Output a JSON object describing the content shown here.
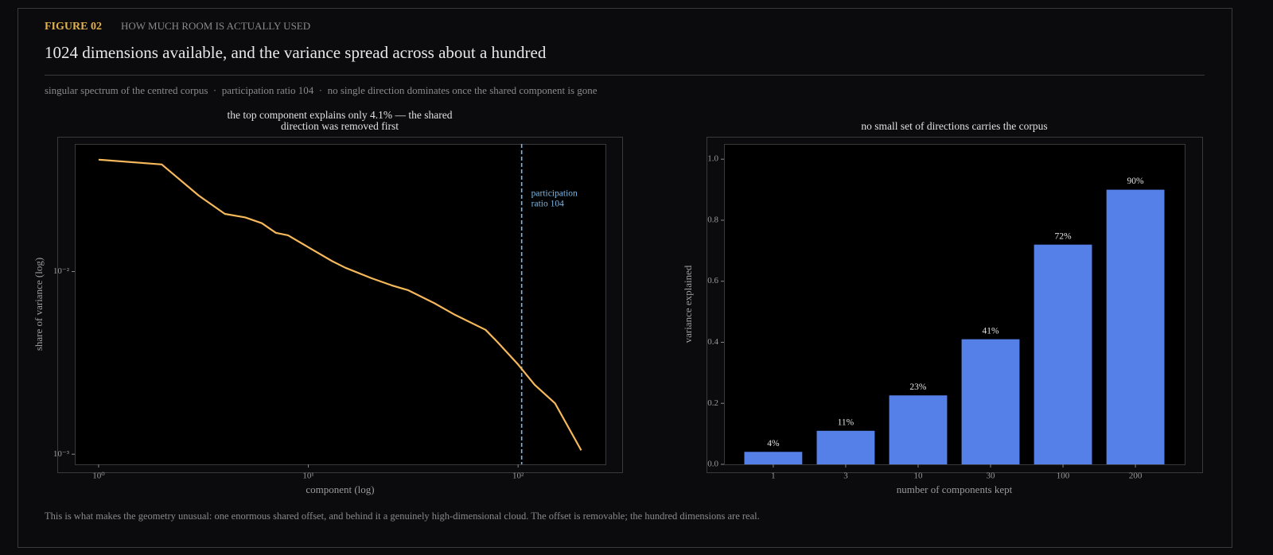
{
  "header": {
    "figure": "FIGURE 02",
    "kicker": "HOW MUCH ROOM IS ACTUALLY USED",
    "title": "1024 dimensions available, and the variance spread across about a hundred",
    "subtitle": "singular spectrum of the centred corpus  ·  participation ratio 104  ·  no single direction dominates once the shared component is gone",
    "footer": "This is what makes the geometry unusual: one enormous shared offset, and behind it a genuinely high-dimensional cloud. The offset is removable; the hundred dimensions are real."
  },
  "chart_data": [
    {
      "type": "line",
      "title": [
        "the top component explains only 4.1% — the shared",
        "direction was removed first"
      ],
      "xlabel": "component (log)",
      "ylabel": "share of variance (log)",
      "xscale": "log",
      "yscale": "log",
      "color": "#f5b85a",
      "x": [
        1,
        2,
        3,
        4,
        5,
        6,
        7,
        8,
        10,
        13,
        15,
        20,
        25,
        30,
        40,
        50,
        70,
        80,
        100,
        120,
        150,
        200
      ],
      "values": [
        0.041,
        0.0386,
        0.0261,
        0.0207,
        0.0198,
        0.0184,
        0.0163,
        0.0158,
        0.0136,
        0.0114,
        0.0105,
        0.0092,
        0.0084,
        0.0079,
        0.0067,
        0.0058,
        0.0048,
        0.0041,
        0.0031,
        0.0024,
        0.0019,
        0.00105
      ],
      "xlim": [
        0.77,
        261
      ],
      "ylim": [
        0.00088,
        0.05
      ],
      "xticks": [
        {
          "value": 1,
          "label": "10⁰"
        },
        {
          "value": 10,
          "label": "10¹"
        },
        {
          "value": 100,
          "label": "10²"
        }
      ],
      "yticks": [
        {
          "value": 0.001,
          "label": "10⁻³"
        },
        {
          "value": 0.01,
          "label": "10⁻²"
        }
      ],
      "annotation": {
        "x": 104,
        "text": [
          "participation",
          "ratio 104"
        ],
        "color": "#7ab8e8"
      }
    },
    {
      "type": "bar",
      "title": [
        "no small set of directions carries the corpus"
      ],
      "xlabel": "number of components kept",
      "ylabel": "variance explained",
      "color": "#5580e8",
      "categories": [
        "1",
        "3",
        "10",
        "30",
        "100",
        "200"
      ],
      "values": [
        0.041,
        0.11,
        0.226,
        0.41,
        0.72,
        0.9
      ],
      "value_labels": [
        "4%",
        "11%",
        "23%",
        "41%",
        "72%",
        "90%"
      ],
      "ylim": [
        0,
        1.05
      ],
      "yticks": [
        {
          "value": 0,
          "label": "0.0"
        },
        0.2,
        0.4,
        0.6,
        0.8,
        {
          "value": 1,
          "label": "1.0"
        }
      ]
    }
  ]
}
